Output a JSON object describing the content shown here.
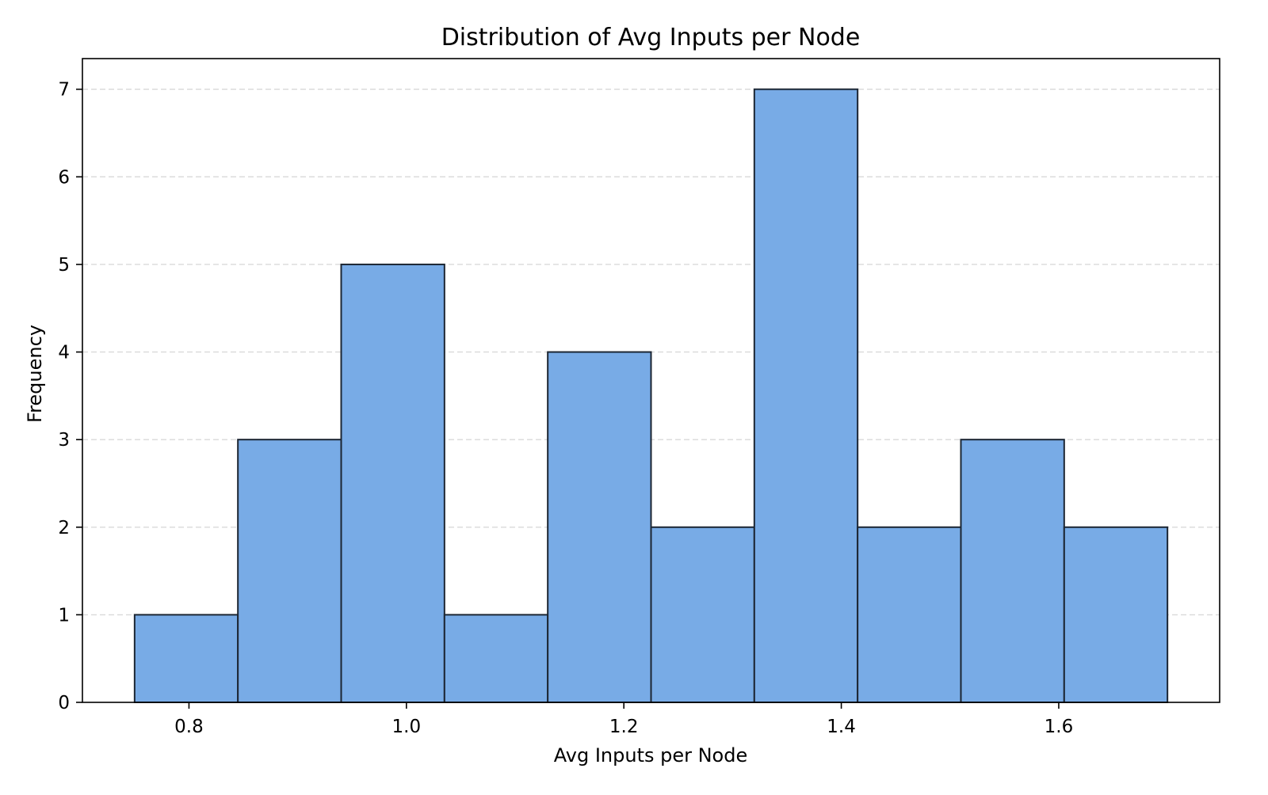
{
  "chart_data": {
    "type": "bar",
    "title": "Distribution of Avg Inputs per Node",
    "xlabel": "Avg Inputs per Node",
    "ylabel": "Frequency",
    "bins": [
      {
        "start": 0.75,
        "end": 0.845,
        "count": 1
      },
      {
        "start": 0.845,
        "end": 0.94,
        "count": 3
      },
      {
        "start": 0.94,
        "end": 1.035,
        "count": 5
      },
      {
        "start": 1.035,
        "end": 1.13,
        "count": 1
      },
      {
        "start": 1.13,
        "end": 1.225,
        "count": 4
      },
      {
        "start": 1.225,
        "end": 1.32,
        "count": 2
      },
      {
        "start": 1.32,
        "end": 1.415,
        "count": 7
      },
      {
        "start": 1.415,
        "end": 1.51,
        "count": 2
      },
      {
        "start": 1.51,
        "end": 1.605,
        "count": 3
      },
      {
        "start": 1.605,
        "end": 1.7,
        "count": 2
      }
    ],
    "xlim": [
      0.702,
      1.748
    ],
    "ylim": [
      0,
      7.35
    ],
    "xticks": [
      "0.8",
      "1.0",
      "1.2",
      "1.4",
      "1.6"
    ],
    "yticks": [
      "0",
      "1",
      "2",
      "3",
      "4",
      "5",
      "6",
      "7"
    ],
    "grid": "y-dashed",
    "colors": {
      "bar_fill": "#78abe6",
      "bar_edge": "#1c2633",
      "grid": "#d9d9d9",
      "axis": "#000000"
    }
  }
}
